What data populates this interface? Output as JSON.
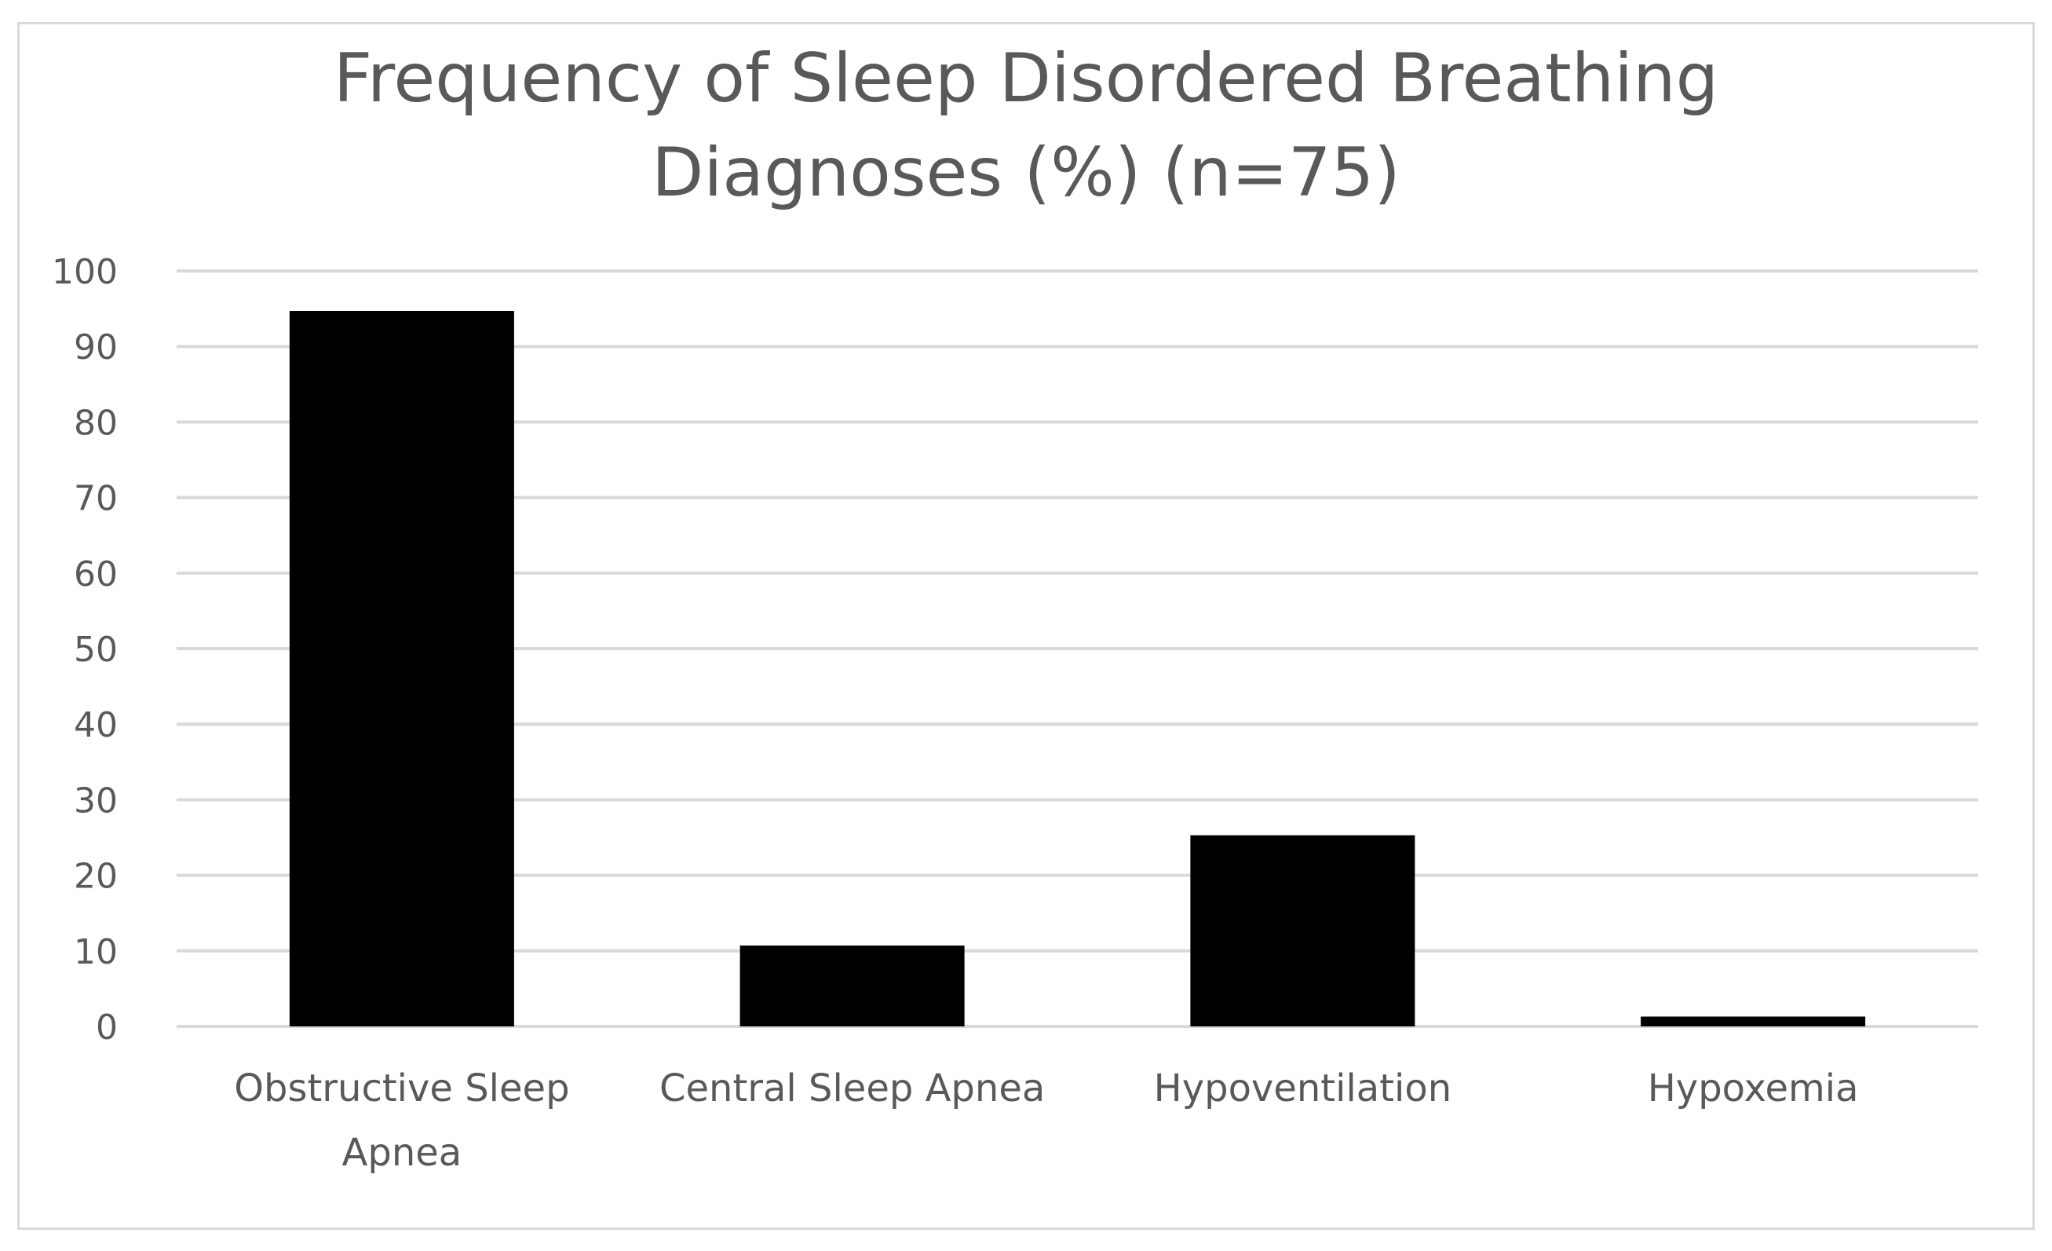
{
  "chart_data": {
    "type": "bar",
    "title_lines": [
      "Frequency of Sleep Disordered Breathing",
      "Diagnoses (%) (n=75)"
    ],
    "categories": [
      [
        "Obstructive Sleep",
        "Apnea"
      ],
      [
        "Central Sleep Apnea"
      ],
      [
        "Hypoventilation"
      ],
      [
        "Hypoxemia"
      ]
    ],
    "values": [
      94.7,
      10.7,
      25.3,
      1.3
    ],
    "yticks": [
      "0",
      "10",
      "20",
      "30",
      "40",
      "50",
      "60",
      "70",
      "80",
      "90",
      "100"
    ],
    "ylim": [
      0,
      100
    ],
    "grid": true,
    "bar_color": "#000000",
    "grid_color": "#d9d9d9",
    "text_color": "#595959"
  }
}
